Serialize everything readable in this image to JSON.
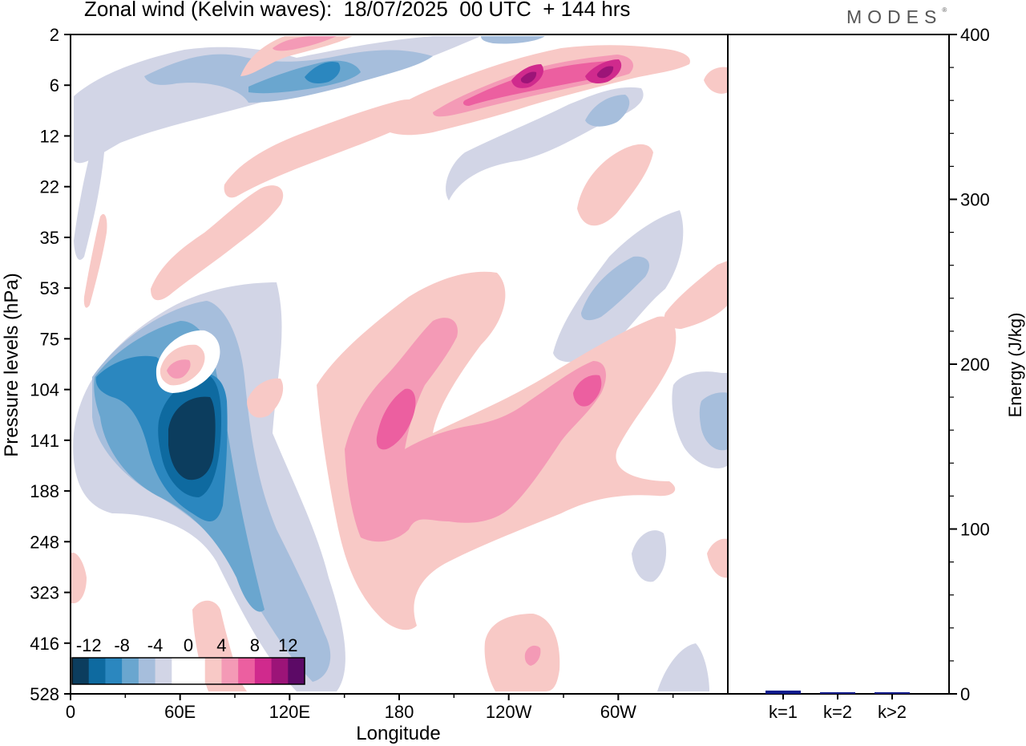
{
  "title": "Zonal wind (Kelvin waves):  18/07/2025  00 UTC  + 144 hrs",
  "logo": "MODES",
  "logo_mark": "®",
  "chart_data": [
    {
      "type": "heatmap",
      "xlabel": "Longitude",
      "ylabel": "Pressure levels (hPa)",
      "x_ticks": [
        "0",
        "60E",
        "120E",
        "180",
        "120W",
        "60W"
      ],
      "x_tick_values": [
        0,
        60,
        120,
        180,
        240,
        300
      ],
      "xlim": [
        0,
        360
      ],
      "y_ticks": [
        "2",
        "6",
        "12",
        "22",
        "35",
        "53",
        "75",
        "104",
        "141",
        "188",
        "248",
        "323",
        "416",
        "528"
      ],
      "colorbar": {
        "labels": [
          "-12",
          "-8",
          "-4",
          "0",
          "4",
          "8",
          "12"
        ],
        "colors": [
          "#0c3d5e",
          "#0e6aa0",
          "#2b87bf",
          "#6aa6cf",
          "#a6bedc",
          "#d2d5e6",
          "#ffffff",
          "#ffffff",
          "#f8c9c6",
          "#f49ab6",
          "#ec5fa0",
          "#d02a8d",
          "#9c1478",
          "#5c0a66"
        ]
      },
      "features": [
        {
          "sign": "negative",
          "magnitude": 12,
          "center_lon": 70,
          "center_level": "141"
        },
        {
          "sign": "positive",
          "magnitude": 8,
          "center_lon": 250,
          "center_level": "6"
        },
        {
          "sign": "positive",
          "magnitude": 8,
          "center_lon": 295,
          "center_level": "6"
        },
        {
          "sign": "negative",
          "magnitude": 8,
          "center_lon": 140,
          "center_level": "6"
        },
        {
          "sign": "positive",
          "magnitude": 6,
          "center_lon": 175,
          "center_level": "141"
        },
        {
          "sign": "positive",
          "magnitude": 6,
          "center_lon": 280,
          "center_level": "104"
        },
        {
          "sign": "positive",
          "magnitude": 4,
          "center_lon": 60,
          "center_level": "104"
        }
      ]
    },
    {
      "type": "bar",
      "ylabel": "Energy (J/kg)",
      "categories": [
        "k=1",
        "k=2",
        "k>2"
      ],
      "values": [
        2,
        1,
        1
      ],
      "ylim": [
        0,
        400
      ],
      "y_ticks": [
        "0",
        "100",
        "200",
        "300",
        "400"
      ],
      "bar_color": "#0a1a8c"
    }
  ]
}
